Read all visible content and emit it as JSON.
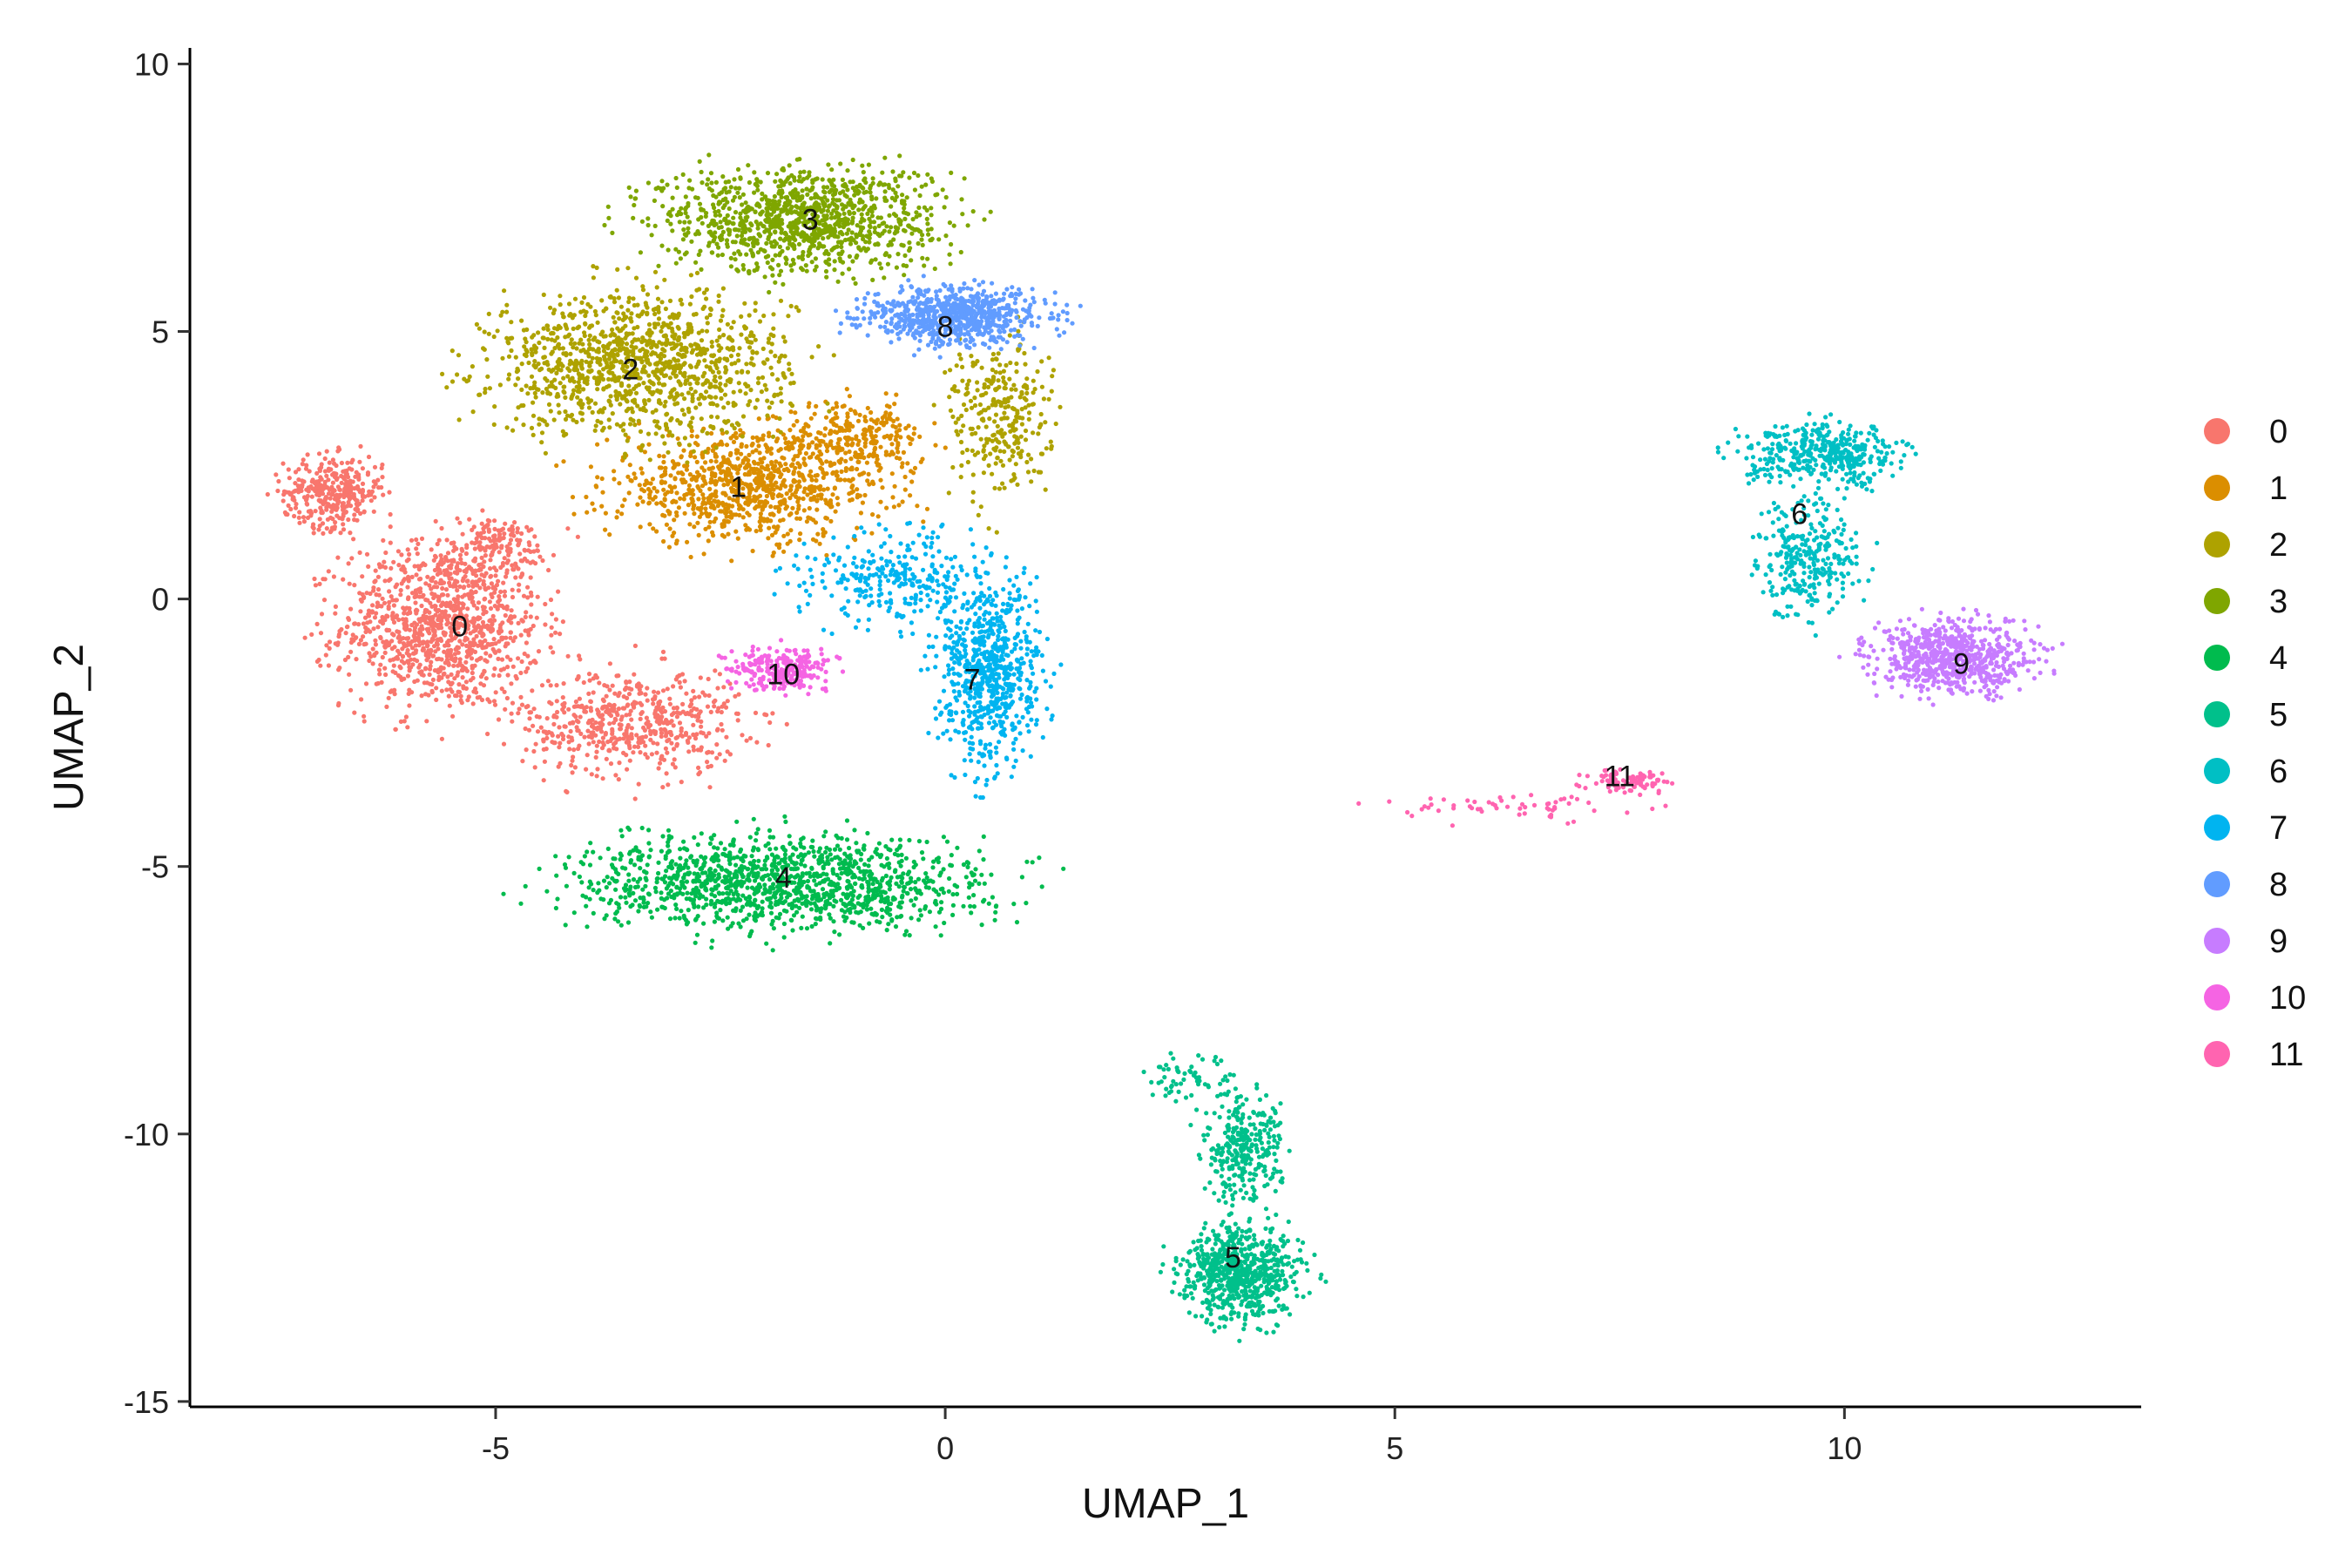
{
  "chart_data": {
    "type": "scatter",
    "title": "",
    "xlabel": "UMAP_1",
    "ylabel": "UMAP_2",
    "xlim": [
      -8.4,
      13.3
    ],
    "ylim": [
      -15.1,
      10.3
    ],
    "xticks": [
      -5,
      0,
      5,
      10
    ],
    "yticks": [
      -15,
      -10,
      -5,
      0,
      5,
      10
    ],
    "xtick_labels": [
      "-5",
      "0",
      "5",
      "10"
    ],
    "ytick_labels": [
      "-15",
      "-10",
      "-5",
      "0",
      "5",
      "10"
    ],
    "grid": false,
    "legend_position": "right",
    "series": [
      {
        "name": "0",
        "color": "#F8766D",
        "label_pos": [
          -5.4,
          -0.5
        ],
        "blobs": [
          [
            -5.6,
            -0.5,
            1.0,
            1.4,
            1100
          ],
          [
            -6.8,
            2.0,
            0.5,
            0.6,
            350
          ],
          [
            -3.5,
            -2.3,
            1.1,
            0.9,
            550
          ],
          [
            -5.0,
            1.0,
            0.6,
            0.5,
            150
          ]
        ]
      },
      {
        "name": "1",
        "color": "#DB8E00",
        "label_pos": [
          -2.3,
          2.1
        ],
        "blobs": [
          [
            -2.2,
            2.1,
            1.4,
            0.9,
            900
          ],
          [
            -1.0,
            3.0,
            0.7,
            0.6,
            250
          ]
        ]
      },
      {
        "name": "2",
        "color": "#AEA200",
        "label_pos": [
          -3.5,
          4.3
        ],
        "blobs": [
          [
            -3.4,
            4.4,
            1.5,
            1.2,
            1200
          ],
          [
            0.6,
            3.4,
            0.5,
            1.4,
            300
          ]
        ]
      },
      {
        "name": "3",
        "color": "#7FA600",
        "label_pos": [
          -1.5,
          7.1
        ],
        "blobs": [
          [
            -1.6,
            7.1,
            1.4,
            0.9,
            1100
          ]
        ]
      },
      {
        "name": "4",
        "color": "#00BB4E",
        "label_pos": [
          -1.8,
          -5.2
        ],
        "blobs": [
          [
            -1.8,
            -5.3,
            2.0,
            0.8,
            1300
          ]
        ]
      },
      {
        "name": "5",
        "color": "#00C08B",
        "label_pos": [
          3.2,
          -12.3
        ],
        "blobs": [
          [
            3.3,
            -12.6,
            0.6,
            0.8,
            700
          ],
          [
            3.3,
            -10.3,
            0.4,
            0.9,
            300
          ],
          [
            2.7,
            -9.0,
            0.5,
            0.4,
            60
          ]
        ]
      },
      {
        "name": "6",
        "color": "#00BFC4",
        "label_pos": [
          9.5,
          1.6
        ],
        "blobs": [
          [
            9.8,
            2.7,
            0.8,
            0.5,
            400
          ],
          [
            9.6,
            0.8,
            0.5,
            1.0,
            300
          ]
        ]
      },
      {
        "name": "7",
        "color": "#00B4F0",
        "label_pos": [
          0.3,
          -1.5
        ],
        "blobs": [
          [
            0.5,
            -1.4,
            0.5,
            1.5,
            700
          ],
          [
            -0.5,
            0.4,
            1.0,
            0.8,
            300
          ]
        ]
      },
      {
        "name": "8",
        "color": "#619CFF",
        "label_pos": [
          0.0,
          5.1
        ],
        "blobs": [
          [
            0.1,
            5.3,
            0.9,
            0.5,
            700
          ]
        ]
      },
      {
        "name": "9",
        "color": "#C77CFF",
        "label_pos": [
          11.3,
          -1.2
        ],
        "blobs": [
          [
            11.2,
            -1.1,
            0.8,
            0.6,
            700
          ]
        ]
      },
      {
        "name": "10",
        "color": "#F564E3",
        "label_pos": [
          -1.8,
          -1.4
        ],
        "blobs": [
          [
            -1.8,
            -1.3,
            0.5,
            0.35,
            260
          ]
        ]
      },
      {
        "name": "11",
        "color": "#FF64B0",
        "label_pos": [
          7.5,
          -3.3
        ],
        "blobs": [
          [
            7.6,
            -3.4,
            0.4,
            0.2,
            90
          ],
          [
            6.5,
            -3.9,
            1.3,
            0.25,
            60
          ]
        ]
      }
    ]
  }
}
